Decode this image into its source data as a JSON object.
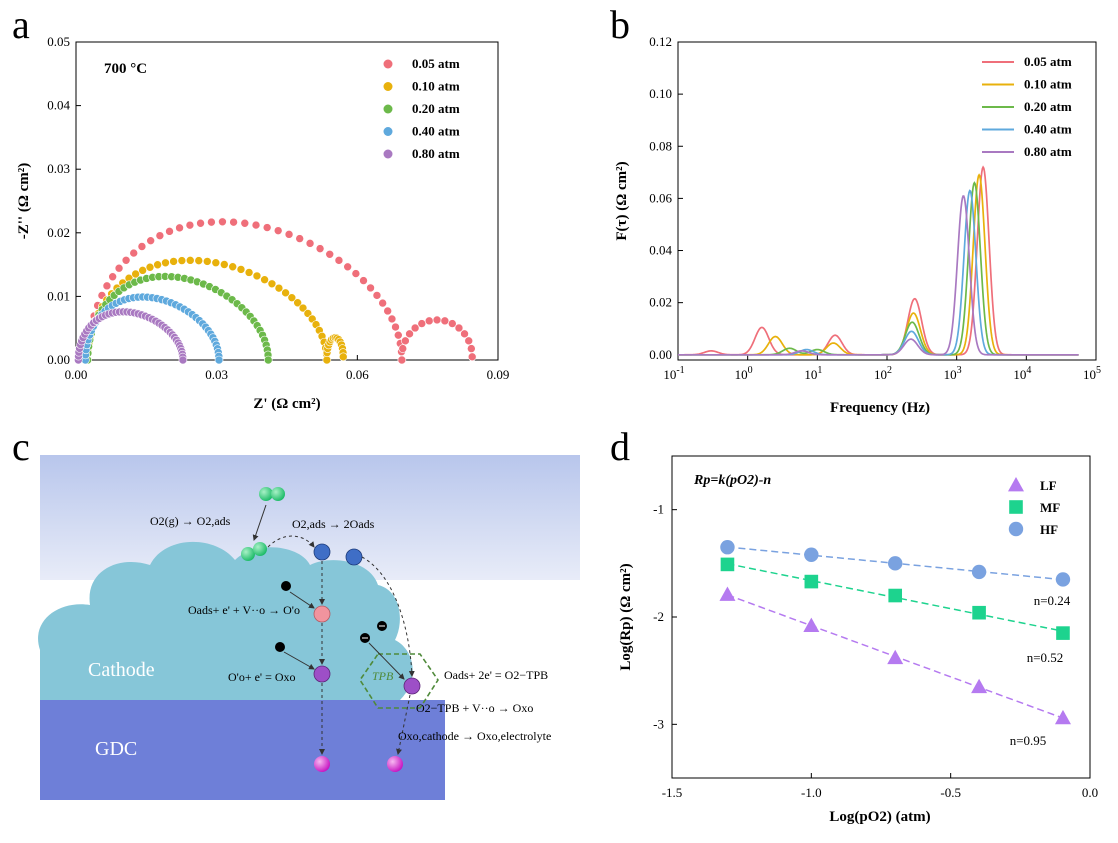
{
  "panel_labels": [
    "a",
    "b",
    "c",
    "d"
  ],
  "colors": {
    "c005": "#ef6f7a",
    "c010": "#e8b10c",
    "c020": "#6cb94a",
    "c040": "#5fa9dd",
    "c080": "#a979c1",
    "LF": "#b57af0",
    "MF": "#1dd38e",
    "HF": "#7aa2e0"
  },
  "chart_data": [
    {
      "id": "a",
      "type": "scatter",
      "annotation": "700 °C",
      "xlabel": "Z' (Ω cm²)",
      "ylabel": "-Z'' (Ω cm²)",
      "xlim": [
        0,
        0.09
      ],
      "ylim": [
        0,
        0.05
      ],
      "xticks": [
        "0.00",
        "0.03",
        "0.06",
        "0.09"
      ],
      "yticks": [
        "0.00",
        "0.01",
        "0.02",
        "0.03",
        "0.04",
        "0.05"
      ],
      "legend_position": "top-right",
      "series": [
        {
          "name": "0.05 atm",
          "color": "#ef6f7a",
          "r0": 0.0025,
          "r1": 0.0695,
          "peak": 0.0215,
          "arc2": {
            "x0": 0.0695,
            "x1": 0.0845,
            "peak": 0.0058
          }
        },
        {
          "name": "0.10 atm",
          "color": "#e8b10c",
          "r0": 0.0025,
          "r1": 0.0535,
          "peak": 0.0155,
          "arc2": {
            "x0": 0.0535,
            "x1": 0.057,
            "peak": 0.003
          }
        },
        {
          "name": "0.20 atm",
          "color": "#6cb94a",
          "r0": 0.0025,
          "r1": 0.041,
          "peak": 0.013
        },
        {
          "name": "0.40 atm",
          "color": "#5fa9dd",
          "r0": 0.002,
          "r1": 0.0305,
          "peak": 0.0098
        },
        {
          "name": "0.80 atm",
          "color": "#a979c1",
          "r0": 0.0005,
          "r1": 0.0228,
          "peak": 0.0075
        }
      ]
    },
    {
      "id": "b",
      "type": "line",
      "xlabel": "Frequency (Hz)",
      "ylabel": "F(τ) (Ω cm²)",
      "xscale": "log",
      "xlim": [
        0.1,
        100000
      ],
      "ylim": [
        -0.002,
        0.12
      ],
      "xticks": [
        "10-1",
        "100",
        "101",
        "102",
        "103",
        "104",
        "105"
      ],
      "yticks": [
        "0.00",
        "0.02",
        "0.04",
        "0.06",
        "0.08",
        "0.10",
        "0.12"
      ],
      "legend_position": "top-right",
      "series": [
        {
          "name": "0.05 atm",
          "color": "#ef6f7a",
          "peaks": [
            [
              0.3,
              0.0015
            ],
            [
              1.6,
              0.0105
            ],
            [
              18,
              0.0075
            ],
            [
              250,
              0.0215
            ],
            [
              2400,
              0.072
            ]
          ]
        },
        {
          "name": "0.10 atm",
          "color": "#e8b10c",
          "peaks": [
            [
              2.5,
              0.007
            ],
            [
              17,
              0.0045
            ],
            [
              240,
              0.016
            ],
            [
              2100,
              0.069
            ]
          ]
        },
        {
          "name": "0.20 atm",
          "color": "#6cb94a",
          "peaks": [
            [
              4,
              0.0025
            ],
            [
              10,
              0.002
            ],
            [
              230,
              0.0125
            ],
            [
              1800,
              0.066
            ]
          ]
        },
        {
          "name": "0.40 atm",
          "color": "#5fa9dd",
          "peaks": [
            [
              7,
              0.002
            ],
            [
              225,
              0.009
            ],
            [
              1550,
              0.063
            ]
          ]
        },
        {
          "name": "0.80 atm",
          "color": "#a979c1",
          "peaks": [
            [
              6,
              0.0015
            ],
            [
              220,
              0.006
            ],
            [
              1250,
              0.061
            ]
          ]
        }
      ]
    },
    {
      "id": "d",
      "type": "scatter",
      "formula": "Rp=k(pO2)-n",
      "xlabel": "Log(pO2) (atm)",
      "ylabel": "Log(Rp) (Ω cm²)",
      "xlim": [
        -1.5,
        0
      ],
      "ylim": [
        -3.5,
        -0.5
      ],
      "xticks": [
        "-1.5",
        "-1.0",
        "-0.5",
        "0.0"
      ],
      "yticks": [
        "-1",
        "-2",
        "-3"
      ],
      "legend_position": "top-right",
      "x": [
        -1.301,
        -1.0,
        -0.699,
        -0.398,
        -0.097
      ],
      "series": [
        {
          "name": "LF",
          "marker": "triangle",
          "color": "#b57af0",
          "values": [
            -1.79,
            -2.08,
            -2.38,
            -2.65,
            -2.94
          ],
          "fit_label": "n=0.95"
        },
        {
          "name": "MF",
          "marker": "square",
          "color": "#1dd38e",
          "values": [
            -1.51,
            -1.67,
            -1.8,
            -1.96,
            -2.15
          ],
          "fit_label": "n=0.52"
        },
        {
          "name": "HF",
          "marker": "circle",
          "color": "#7aa2e0",
          "values": [
            -1.35,
            -1.42,
            -1.5,
            -1.58,
            -1.65
          ],
          "fit_label": "n=0.24"
        }
      ]
    }
  ],
  "schematic": {
    "labels": {
      "cathode": "Cathode",
      "gdc": "GDC",
      "tpb": "TPB"
    },
    "equations": {
      "eq1": "O2(g) → O2,ads",
      "eq2": "O2,ads → 2Oads",
      "eq3": "Oads+ e' + V··o → O'o",
      "eq4": "O'o+ e' = Oxo",
      "eq5": "Oads+ 2e' = O2−TPB",
      "eq6": "O2−TPB + V··o → Oxo",
      "eq7": "Oxo,cathode → Oxo,electrolyte"
    }
  }
}
